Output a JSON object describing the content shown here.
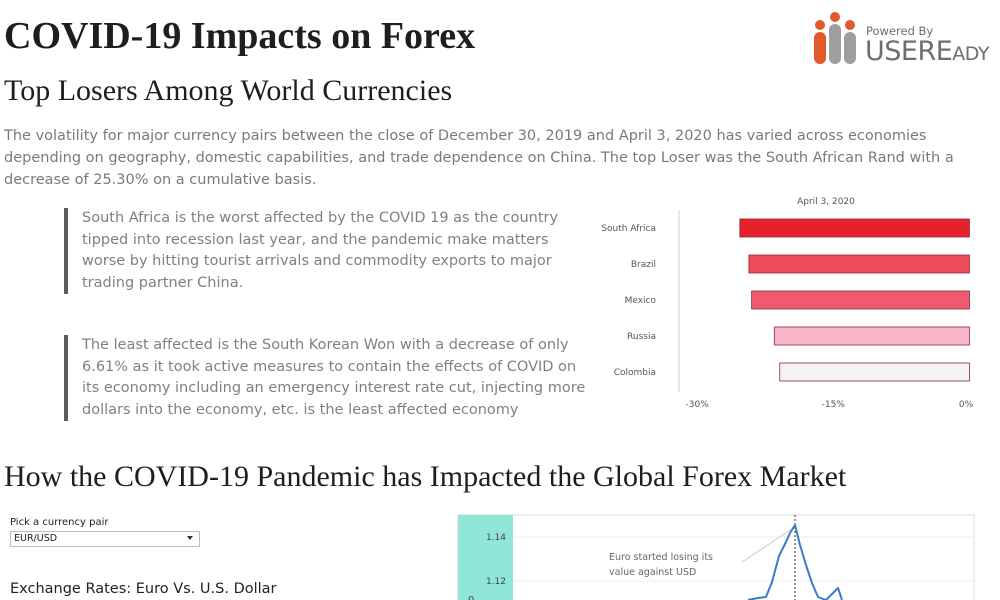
{
  "header": {
    "title": "COVID-19 Impacts on Forex",
    "subtitle": "Top Losers Among World Currencies",
    "intro": "The volatility for major currency pairs between the close of December 30, 2019 and April 3, 2020 has varied across economies depending on geography, domestic capabilities, and trade dependence on China. The top Loser was the South African Rand with a decrease of 25.30% on a cumulative basis."
  },
  "logo": {
    "powered_by": "Powered By",
    "brand_main": "USERE",
    "brand_small": "ADY",
    "colors": [
      "#e05a2b",
      "#9e9e9e"
    ]
  },
  "quotes": {
    "q1": "South Africa is the worst affected by the COVID 19 as the country tipped into recession last year, and the pandemic make matters worse by hitting tourist arrivals and commodity exports to major trading partner China.",
    "q2": "The least affected is the South Korean Won with a decrease of only 6.61% as it took active measures to contain the effects of COVID on its economy including an emergency interest rate cut, injecting more dollars into the economy, etc. is the least affected economy"
  },
  "section2": {
    "heading": "How the COVID-19 Pandemic has Impacted the Global Forex Market",
    "pick_label": "Pick a currency pair",
    "pick_value": "EUR/USD",
    "exchange_title": "Exchange Rates: Euro Vs. U.S. Dollar"
  },
  "chart_data": [
    {
      "type": "bar",
      "orientation": "horizontal",
      "title": "April 3, 2020",
      "categories": [
        "South Africa",
        "Brazil",
        "Mexico",
        "Russia",
        "Colombia"
      ],
      "values": [
        -25.3,
        -24.3,
        -24.0,
        -21.5,
        -20.9
      ],
      "colors": [
        "#e8202e",
        "#ef4a5c",
        "#f05a6e",
        "#f6b6c8",
        "#f3f3f3"
      ],
      "xlim": [
        -32,
        0.5
      ],
      "x_ticks": [
        -30,
        -15,
        0
      ],
      "x_tick_labels": [
        "-30%",
        "-15%",
        "0%"
      ]
    },
    {
      "type": "line",
      "y_tick_labels": [
        "1.14",
        "1.12"
      ],
      "ylim": [
        1.105,
        1.15
      ],
      "series_color": "#3a7bc8",
      "annotation": "Euro started losing its value against USD",
      "highlight_color": "#8fe6d6"
    }
  ]
}
